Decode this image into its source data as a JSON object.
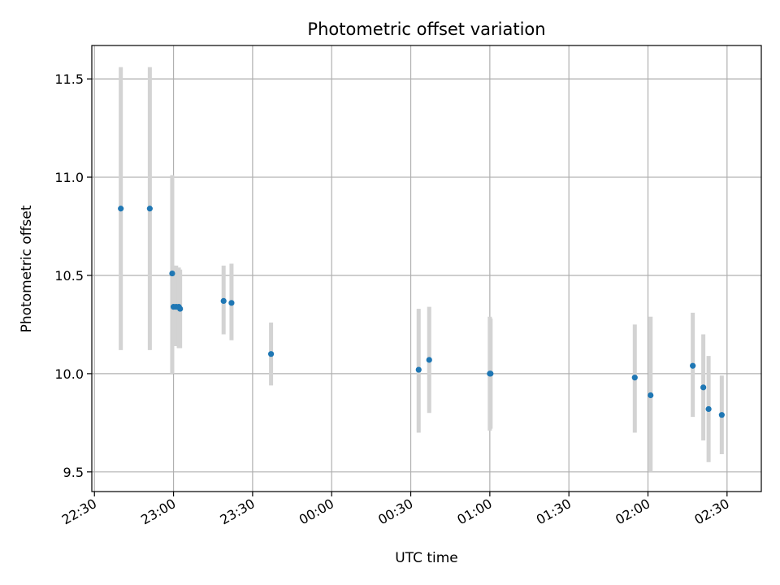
{
  "chart_data": {
    "type": "scatter",
    "title": "Photometric offset variation",
    "xlabel": "UTC time",
    "ylabel": "Photometric offset",
    "x_axis": "time",
    "xlim": [
      "22:29",
      "02:43"
    ],
    "ylim": [
      9.4,
      11.67
    ],
    "x_ticks": [
      "22:30",
      "23:00",
      "23:30",
      "00:00",
      "00:30",
      "01:00",
      "01:30",
      "02:00",
      "02:30"
    ],
    "y_ticks": [
      9.5,
      10.0,
      10.5,
      11.0,
      11.5
    ],
    "y_tick_labels": [
      "9.5",
      "10.0",
      "10.5",
      "11.0",
      "11.5"
    ],
    "grid": true,
    "marker_color": "#1f77b4",
    "errorbar_color": "#d3d3d3",
    "points": [
      {
        "time": "22:40",
        "y": 10.84,
        "low": 10.12,
        "high": 11.56
      },
      {
        "time": "22:51",
        "y": 10.84,
        "low": 10.12,
        "high": 11.56
      },
      {
        "time": "22:59.5",
        "y": 10.51,
        "low": 10.0,
        "high": 11.01
      },
      {
        "time": "23:00",
        "y": 10.34,
        "low": 10.15,
        "high": 10.55
      },
      {
        "time": "23:01",
        "y": 10.34,
        "low": 10.14,
        "high": 10.55
      },
      {
        "time": "23:02",
        "y": 10.34,
        "low": 10.13,
        "high": 10.54
      },
      {
        "time": "23:02.5",
        "y": 10.33,
        "low": 10.13,
        "high": 10.53
      },
      {
        "time": "23:19",
        "y": 10.37,
        "low": 10.2,
        "high": 10.55
      },
      {
        "time": "23:22",
        "y": 10.36,
        "low": 10.17,
        "high": 10.56
      },
      {
        "time": "23:37",
        "y": 10.1,
        "low": 9.94,
        "high": 10.26
      },
      {
        "time": "00:33",
        "y": 10.02,
        "low": 9.7,
        "high": 10.33
      },
      {
        "time": "00:37",
        "y": 10.07,
        "low": 9.8,
        "high": 10.34
      },
      {
        "time": "01:00",
        "y": 10.0,
        "low": 9.71,
        "high": 10.29
      },
      {
        "time": "01:00.3",
        "y": 10.0,
        "low": 9.72,
        "high": 10.28
      },
      {
        "time": "01:55",
        "y": 9.98,
        "low": 9.7,
        "high": 10.25
      },
      {
        "time": "02:01",
        "y": 9.89,
        "low": 9.5,
        "high": 10.29
      },
      {
        "time": "02:17",
        "y": 10.04,
        "low": 9.78,
        "high": 10.31
      },
      {
        "time": "02:21",
        "y": 9.93,
        "low": 9.66,
        "high": 10.2
      },
      {
        "time": "02:23",
        "y": 9.82,
        "low": 9.55,
        "high": 10.09
      },
      {
        "time": "02:28",
        "y": 9.79,
        "low": 9.59,
        "high": 9.99
      }
    ]
  }
}
